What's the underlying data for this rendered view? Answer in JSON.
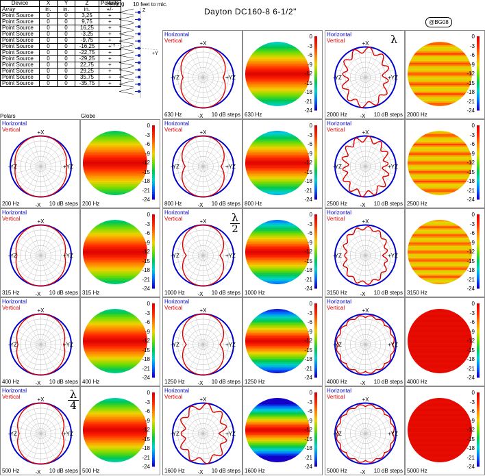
{
  "title": "Dayton DC160-8 6-1/2\"",
  "badge": "@BG08",
  "aiming_label": "Aiming",
  "distance_label": "10 feet to mic.",
  "table": {
    "headers": [
      "Device",
      "X",
      "Y",
      "Z",
      "Polarity"
    ],
    "subheaders": [
      "Array",
      "in.",
      "in.",
      "in.",
      "+/-"
    ],
    "rows": [
      [
        "Point Source",
        "0",
        "0",
        "3,25",
        "+"
      ],
      [
        "Point Source",
        "0",
        "0",
        "9,75",
        "+"
      ],
      [
        "Point Source",
        "0",
        "0",
        "16,25",
        "+"
      ],
      [
        "Point Source",
        "0",
        "0",
        "-3,25",
        "+"
      ],
      [
        "Point Source",
        "0",
        "0",
        "-9,75",
        "+"
      ],
      [
        "Point Source",
        "0",
        "0",
        "-16,25",
        "+"
      ],
      [
        "Point Source",
        "0",
        "0",
        "-22,75",
        "+"
      ],
      [
        "Point Source",
        "0",
        "0",
        "-29,25",
        "+"
      ],
      [
        "Point Source",
        "0",
        "0",
        "22,75",
        "+"
      ],
      [
        "Point Source",
        "0",
        "0",
        "29,25",
        "+"
      ],
      [
        "Point Source",
        "0",
        "0",
        "35,75",
        "+"
      ],
      [
        "Point Source",
        "0",
        "0",
        "-35,75",
        "+"
      ]
    ]
  },
  "polars_label": "Polars",
  "globe_label": "Globe",
  "aiming_axes": {
    "z": "Z",
    "ny": "-Y",
    "y": "+Y"
  },
  "polar_legend": {
    "horizontal": "Horizontal",
    "vertical": "Vertical",
    "top": "+X",
    "bottom": "-X",
    "left": "-YZ",
    "right": "+YZ",
    "steps": "10 dB steps"
  },
  "scale_ticks": [
    "0",
    "-3",
    "-6",
    "-9",
    "-12",
    "-15",
    "-18",
    "-21",
    "-24"
  ],
  "colors": {
    "horizontal": "#0000cc",
    "vertical": "#dd0000",
    "grid": "#b8b8b8"
  },
  "lambda_marks": {
    "full": "λ",
    "half_num": "λ",
    "half_den": "2",
    "quarter_num": "λ",
    "quarter_den": "4"
  },
  "frequencies": [
    {
      "label": "630 Hz",
      "hz": 630
    },
    {
      "label": "2000 Hz",
      "hz": 2000
    },
    {
      "label": "200 Hz",
      "hz": 200
    },
    {
      "label": "800 Hz",
      "hz": 800
    },
    {
      "label": "2500 Hz",
      "hz": 2500
    },
    {
      "label": "315 Hz",
      "hz": 315
    },
    {
      "label": "1000 Hz",
      "hz": 1000
    },
    {
      "label": "3150 Hz",
      "hz": 3150
    },
    {
      "label": "400 Hz",
      "hz": 400
    },
    {
      "label": "1250 Hz",
      "hz": 1250
    },
    {
      "label": "4000 Hz",
      "hz": 4000
    },
    {
      "label": "500 Hz",
      "hz": 500
    },
    {
      "label": "1600 Hz",
      "hz": 1600
    },
    {
      "label": "5000 Hz",
      "hz": 5000
    }
  ]
}
